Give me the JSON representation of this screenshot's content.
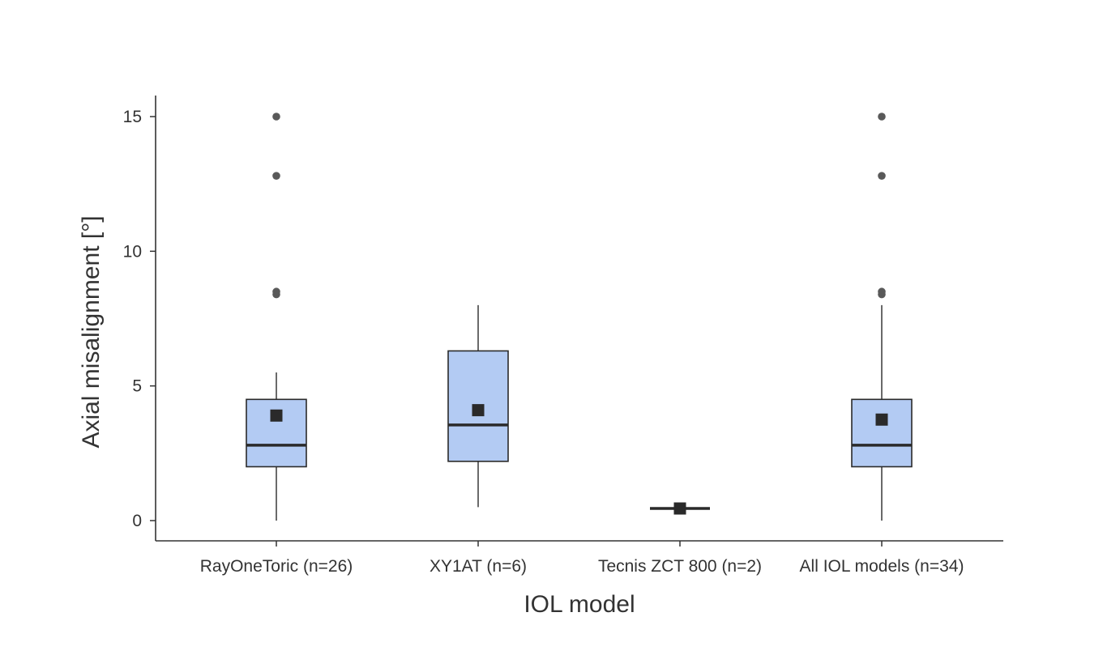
{
  "chart_data": {
    "type": "boxplot",
    "title": "",
    "xlabel": "IOL model",
    "ylabel": "Axial misalignment [°]",
    "ylim": [
      -0.75,
      15.75
    ],
    "yticks": [
      0,
      5,
      10,
      15
    ],
    "ytick_labels": [
      "0",
      "5",
      "10",
      "15"
    ],
    "grid": false,
    "legend": "none",
    "colors": {
      "box_fill": "#b3cbf3",
      "box_stroke": "#2a2a2a",
      "outlier": "#595959",
      "mean_marker": "#2a2a2a",
      "axis": "#333333"
    },
    "categories": [
      "RayOneToric (n=26)",
      "XY1AT (n=6)",
      "Tecnis ZCT 800 (n=2)",
      "All IOL models (n=34)"
    ],
    "boxes": [
      {
        "category": "RayOneToric (n=26)",
        "whisker_low": 0,
        "q1": 2.0,
        "median": 2.8,
        "q3": 4.5,
        "whisker_high": 5.5,
        "mean": 3.9,
        "outliers": [
          8.4,
          8.5,
          12.8,
          15.0
        ]
      },
      {
        "category": "XY1AT (n=6)",
        "whisker_low": 0.5,
        "q1": 2.2,
        "median": 3.55,
        "q3": 6.3,
        "whisker_high": 8.0,
        "mean": 4.1,
        "outliers": []
      },
      {
        "category": "Tecnis ZCT 800 (n=2)",
        "whisker_low": 0.45,
        "q1": 0.45,
        "median": 0.45,
        "q3": 0.45,
        "whisker_high": 0.45,
        "mean": 0.45,
        "outliers": []
      },
      {
        "category": "All IOL models (n=34)",
        "whisker_low": 0,
        "q1": 2.0,
        "median": 2.8,
        "q3": 4.5,
        "whisker_high": 8.0,
        "mean": 3.75,
        "outliers": [
          8.4,
          8.5,
          12.8,
          15.0
        ]
      }
    ]
  }
}
